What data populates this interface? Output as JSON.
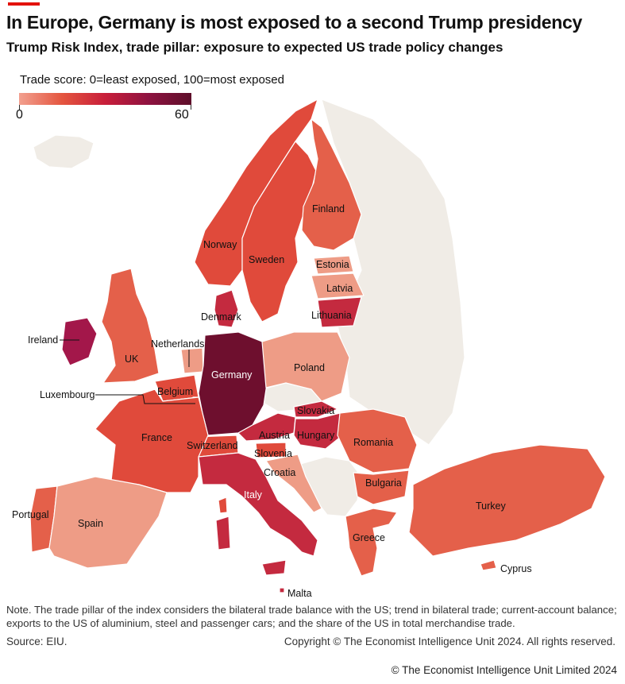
{
  "header": {
    "title": "In Europe, Germany is most exposed to a second Trump presidency",
    "subtitle": "Trump Risk Index, trade pillar: exposure to expected US trade policy changes"
  },
  "legend": {
    "title": "Trade score: 0=least exposed, 100=most exposed",
    "min": "0",
    "max": "60",
    "colors": [
      "#f2a08f",
      "#e4553f",
      "#c81e3a",
      "#8e1240",
      "#5e0f2a"
    ]
  },
  "map": {
    "colors": {
      "no_data": "#f0ece6",
      "border": "#ffffff",
      "low": "#ee9c86",
      "mid_low": "#e4604a",
      "mid": "#e04a3b",
      "high": "#c42a3f",
      "very_high": "#a3174a",
      "max": "#6e0f2e"
    },
    "labels": {
      "finland": "Finland",
      "norway": "Norway",
      "sweden": "Sweden",
      "estonia": "Estonia",
      "latvia": "Latvia",
      "lithuania": "Lithuania",
      "denmark": "Denmark",
      "ireland": "Ireland",
      "uk": "UK",
      "netherlands": "Netherlands",
      "germany": "Germany",
      "poland": "Poland",
      "luxembourg": "Luxembourg",
      "belgium": "Belgium",
      "slovakia": "Slovakia",
      "france": "France",
      "austria": "Austria",
      "hungary": "Hungary",
      "switzerland": "Switzerland",
      "slovenia": "Slovenia",
      "romania": "Romania",
      "croatia": "Croatia",
      "bulgaria": "Bulgaria",
      "italy": "Italy",
      "turkey": "Turkey",
      "portugal": "Portugal",
      "spain": "Spain",
      "greece": "Greece",
      "cyprus": "Cyprus",
      "malta": "Malta"
    }
  },
  "note": "Note. The trade pillar of the index considers the bilateral trade balance with the US; trend in bilateral trade; current-account balance; exports to the US of aluminium, steel and passenger cars; and the share of the US in total merchandise trade.",
  "source": "Source: EIU.",
  "copyright": "Copyright © The Economist Intelligence Unit 2024. All rights reserved.",
  "footer": "© The Economist Intelligence Unit Limited 2024"
}
